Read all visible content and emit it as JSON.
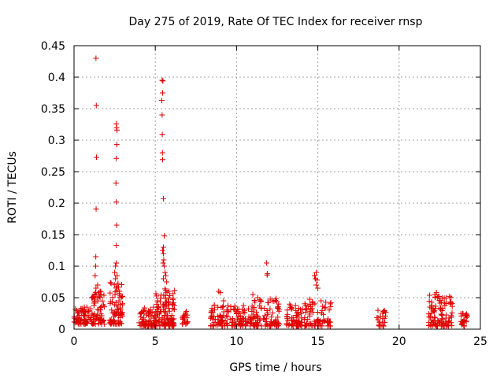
{
  "chart_data": {
    "type": "scatter",
    "title": "Day 275 of 2019, Rate Of TEC Index for receiver rnsp",
    "xlabel": "GPS time / hours",
    "ylabel": "ROTI / TECUs",
    "xlim": [
      0,
      25
    ],
    "ylim": [
      0,
      0.45
    ],
    "xticks": [
      0,
      5,
      10,
      15,
      20,
      25
    ],
    "xtick_labels": [
      "0",
      "5",
      "10",
      "15",
      "20",
      "25"
    ],
    "yticks": [
      0,
      0.05,
      0.1,
      0.15,
      0.2,
      0.25,
      0.3,
      0.35,
      0.4,
      0.45
    ],
    "ytick_labels": [
      "0",
      "0.05",
      "0.1",
      "0.15",
      "0.2",
      "0.25",
      "0.3",
      "0.35",
      "0.4",
      "0.45"
    ],
    "grid": true,
    "marker": "+",
    "color": "#e00000",
    "clusters": [
      {
        "x_start": 0.0,
        "x_end": 1.0,
        "y_min": 0.008,
        "y_max": 0.035,
        "n": 70
      },
      {
        "x_start": 1.0,
        "x_end": 1.9,
        "y_min": 0.008,
        "y_max": 0.06,
        "n": 70
      },
      {
        "x_start": 2.2,
        "x_end": 3.0,
        "y_min": 0.008,
        "y_max": 0.075,
        "n": 80
      },
      {
        "x_start": 4.0,
        "x_end": 5.0,
        "y_min": 0.005,
        "y_max": 0.035,
        "n": 70
      },
      {
        "x_start": 5.0,
        "x_end": 6.2,
        "y_min": 0.005,
        "y_max": 0.065,
        "n": 120
      },
      {
        "x_start": 6.6,
        "x_end": 7.0,
        "y_min": 0.008,
        "y_max": 0.03,
        "n": 20
      },
      {
        "x_start": 8.4,
        "x_end": 9.5,
        "y_min": 0.005,
        "y_max": 0.04,
        "n": 60
      },
      {
        "x_start": 9.6,
        "x_end": 11.0,
        "y_min": 0.005,
        "y_max": 0.04,
        "n": 70
      },
      {
        "x_start": 11.0,
        "x_end": 12.7,
        "y_min": 0.005,
        "y_max": 0.05,
        "n": 90
      },
      {
        "x_start": 13.0,
        "x_end": 14.0,
        "y_min": 0.005,
        "y_max": 0.04,
        "n": 60
      },
      {
        "x_start": 14.0,
        "x_end": 15.8,
        "y_min": 0.005,
        "y_max": 0.05,
        "n": 80
      },
      {
        "x_start": 18.6,
        "x_end": 19.2,
        "y_min": 0.005,
        "y_max": 0.03,
        "n": 25
      },
      {
        "x_start": 21.8,
        "x_end": 23.3,
        "y_min": 0.005,
        "y_max": 0.055,
        "n": 100
      },
      {
        "x_start": 23.8,
        "x_end": 24.2,
        "y_min": 0.005,
        "y_max": 0.03,
        "n": 25
      }
    ],
    "points": [
      [
        1.35,
        0.43
      ],
      [
        1.37,
        0.355
      ],
      [
        1.38,
        0.273
      ],
      [
        1.36,
        0.191
      ],
      [
        1.34,
        0.115
      ],
      [
        1.33,
        0.1
      ],
      [
        1.3,
        0.085
      ],
      [
        1.35,
        0.065
      ],
      [
        1.6,
        0.06
      ],
      [
        1.45,
        0.07
      ],
      [
        2.6,
        0.326
      ],
      [
        2.62,
        0.32
      ],
      [
        2.64,
        0.316
      ],
      [
        2.63,
        0.293
      ],
      [
        2.6,
        0.271
      ],
      [
        2.58,
        0.232
      ],
      [
        2.6,
        0.202
      ],
      [
        2.62,
        0.165
      ],
      [
        2.6,
        0.133
      ],
      [
        2.6,
        0.105
      ],
      [
        2.55,
        0.1
      ],
      [
        2.5,
        0.09
      ],
      [
        2.65,
        0.085
      ],
      [
        2.55,
        0.08
      ],
      [
        5.42,
        0.395
      ],
      [
        5.47,
        0.394
      ],
      [
        5.45,
        0.375
      ],
      [
        5.4,
        0.363
      ],
      [
        5.42,
        0.34
      ],
      [
        5.43,
        0.309
      ],
      [
        5.44,
        0.28
      ],
      [
        5.45,
        0.269
      ],
      [
        5.5,
        0.207
      ],
      [
        5.55,
        0.148
      ],
      [
        5.5,
        0.13
      ],
      [
        5.45,
        0.125
      ],
      [
        5.5,
        0.12
      ],
      [
        5.52,
        0.11
      ],
      [
        5.48,
        0.105
      ],
      [
        5.55,
        0.1
      ],
      [
        5.6,
        0.09
      ],
      [
        5.65,
        0.085
      ],
      [
        5.5,
        0.08
      ],
      [
        5.7,
        0.075
      ],
      [
        8.9,
        0.06
      ],
      [
        9.0,
        0.058
      ],
      [
        9.2,
        0.045
      ],
      [
        11.0,
        0.055
      ],
      [
        11.3,
        0.05
      ],
      [
        11.5,
        0.045
      ],
      [
        11.85,
        0.105
      ],
      [
        11.9,
        0.088
      ],
      [
        11.88,
        0.086
      ],
      [
        12.2,
        0.045
      ],
      [
        14.9,
        0.09
      ],
      [
        14.8,
        0.085
      ],
      [
        14.85,
        0.08
      ],
      [
        14.95,
        0.078
      ],
      [
        14.9,
        0.07
      ],
      [
        15.0,
        0.065
      ],
      [
        15.2,
        0.045
      ],
      [
        15.8,
        0.042
      ],
      [
        22.3,
        0.058
      ],
      [
        22.2,
        0.055
      ],
      [
        22.4,
        0.052
      ],
      [
        23.1,
        0.052
      ]
    ]
  }
}
